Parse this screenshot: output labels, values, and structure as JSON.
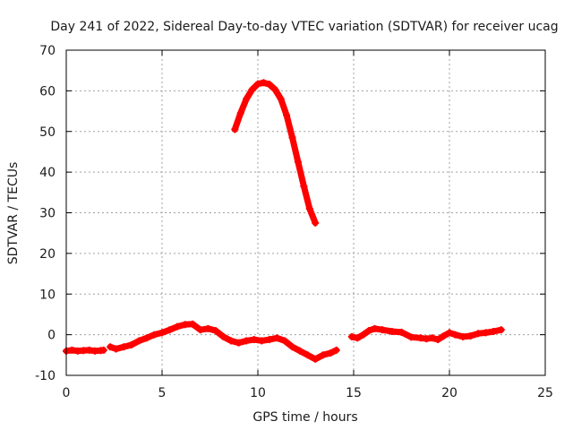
{
  "chart_data": {
    "type": "scatter",
    "title": "Day 241 of 2022, Sidereal Day-to-day VTEC variation (SDTVAR) for receiver ucag",
    "xlabel": "GPS time / hours",
    "ylabel": "SDTVAR / TECUs",
    "xlim": [
      0,
      25
    ],
    "ylim": [
      -10,
      70
    ],
    "xticks": [
      0,
      5,
      10,
      15,
      20,
      25
    ],
    "yticks": [
      -10,
      0,
      10,
      20,
      30,
      40,
      50,
      60,
      70
    ],
    "grid": true,
    "marker": "plus",
    "series": [
      {
        "name": "ucag",
        "color": "#ff0000",
        "segments": [
          {
            "x": [
              0.0,
              0.3,
              0.6,
              0.9,
              1.2,
              1.5,
              1.8,
              1.95
            ],
            "y": [
              -4.0,
              -3.8,
              -4.0,
              -3.9,
              -3.8,
              -4.0,
              -3.9,
              -3.8
            ]
          },
          {
            "x": [
              2.3,
              2.6,
              3.0,
              3.4,
              3.8,
              4.2,
              4.6,
              5.0,
              5.4,
              5.8,
              6.2,
              6.6,
              7.0,
              7.4,
              7.8,
              8.2,
              8.6,
              9.0,
              9.4,
              9.8,
              10.2,
              10.6,
              11.0,
              11.4,
              11.8,
              12.2,
              12.6,
              13.0,
              13.4,
              13.8,
              14.1
            ],
            "y": [
              -3.0,
              -3.5,
              -3.0,
              -2.5,
              -1.5,
              -0.8,
              0.0,
              0.5,
              1.2,
              2.0,
              2.5,
              2.6,
              1.2,
              1.5,
              1.0,
              -0.5,
              -1.5,
              -2.0,
              -1.5,
              -1.2,
              -1.5,
              -1.2,
              -0.8,
              -1.5,
              -3.0,
              -4.0,
              -5.0,
              -6.0,
              -5.0,
              -4.5,
              -3.8
            ]
          },
          {
            "x": [
              8.8,
              9.1,
              9.4,
              9.7,
              10.0,
              10.3,
              10.6,
              10.9,
              11.2,
              11.5,
              11.8,
              12.1,
              12.4,
              12.7,
              13.0
            ],
            "y": [
              50.5,
              54.5,
              58.0,
              60.3,
              61.7,
              62.0,
              61.6,
              60.3,
              58.0,
              54.0,
              48.5,
              42.5,
              36.5,
              31.0,
              27.5
            ]
          },
          {
            "x": [
              14.9,
              15.2,
              15.5,
              15.8,
              16.1,
              16.5,
              17.0,
              17.5,
              18.0,
              18.5,
              18.8,
              19.1,
              19.4,
              19.7,
              20.0,
              20.3,
              20.7,
              21.1,
              21.5,
              21.9,
              22.3,
              22.7
            ],
            "y": [
              -0.5,
              -0.8,
              0.0,
              1.0,
              1.5,
              1.2,
              0.8,
              0.6,
              -0.6,
              -0.8,
              -1.0,
              -0.8,
              -1.2,
              -0.3,
              0.5,
              0.0,
              -0.5,
              -0.3,
              0.3,
              0.5,
              0.8,
              1.2
            ]
          }
        ]
      }
    ]
  }
}
